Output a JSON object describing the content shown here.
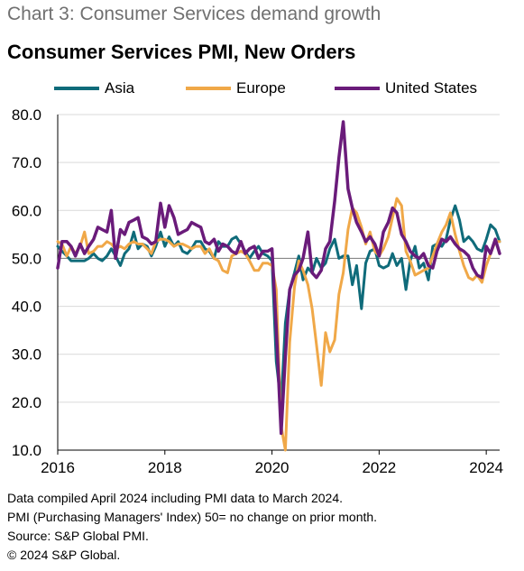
{
  "chart_number": "Chart 3: Consumer Services demand growth",
  "chart_data": {
    "type": "line",
    "title": "Consumer Services PMI, New Orders",
    "xlabel": "",
    "ylabel": "",
    "ylim": [
      10,
      80
    ],
    "xlim": [
      2016,
      2024.25
    ],
    "yticks": [
      "10.0",
      "20.0",
      "30.0",
      "40.0",
      "50.0",
      "60.0",
      "70.0",
      "80.0"
    ],
    "xticks": [
      "2016",
      "2018",
      "2020",
      "2022",
      "2024"
    ],
    "reference_line": 50,
    "grid": true,
    "legend_position": "top",
    "series": [
      {
        "name": "Asia",
        "color": "#0f6b7a",
        "points": [
          [
            2016.0,
            52.5
          ],
          [
            2016.08,
            51.5
          ],
          [
            2016.17,
            50.5
          ],
          [
            2016.25,
            49.5
          ],
          [
            2016.33,
            49.5
          ],
          [
            2016.42,
            49.5
          ],
          [
            2016.5,
            49.5
          ],
          [
            2016.58,
            50.0
          ],
          [
            2016.67,
            51.0
          ],
          [
            2016.75,
            50.0
          ],
          [
            2016.83,
            49.5
          ],
          [
            2016.92,
            50.5
          ],
          [
            2017.0,
            52.0
          ],
          [
            2017.08,
            50.5
          ],
          [
            2017.17,
            48.5
          ],
          [
            2017.25,
            51.0
          ],
          [
            2017.33,
            52.0
          ],
          [
            2017.42,
            55.5
          ],
          [
            2017.5,
            52.0
          ],
          [
            2017.58,
            53.0
          ],
          [
            2017.67,
            52.5
          ],
          [
            2017.75,
            50.5
          ],
          [
            2017.83,
            52.5
          ],
          [
            2017.92,
            55.5
          ],
          [
            2018.0,
            52.5
          ],
          [
            2018.08,
            54.5
          ],
          [
            2018.17,
            52.5
          ],
          [
            2018.25,
            53.5
          ],
          [
            2018.33,
            51.5
          ],
          [
            2018.42,
            51.0
          ],
          [
            2018.5,
            52.0
          ],
          [
            2018.58,
            53.5
          ],
          [
            2018.67,
            53.5
          ],
          [
            2018.75,
            52.0
          ],
          [
            2018.83,
            51.5
          ],
          [
            2018.92,
            50.0
          ],
          [
            2019.0,
            53.5
          ],
          [
            2019.08,
            52.5
          ],
          [
            2019.17,
            52.5
          ],
          [
            2019.25,
            54.0
          ],
          [
            2019.33,
            54.5
          ],
          [
            2019.42,
            53.0
          ],
          [
            2019.5,
            51.5
          ],
          [
            2019.58,
            50.0
          ],
          [
            2019.67,
            51.5
          ],
          [
            2019.75,
            52.5
          ],
          [
            2019.83,
            51.0
          ],
          [
            2019.92,
            50.5
          ],
          [
            2020.0,
            49.5
          ],
          [
            2020.08,
            28.5
          ],
          [
            2020.17,
            19.5
          ],
          [
            2020.25,
            36.5
          ],
          [
            2020.33,
            43.5
          ],
          [
            2020.42,
            47.0
          ],
          [
            2020.5,
            50.5
          ],
          [
            2020.58,
            45.5
          ],
          [
            2020.67,
            48.0
          ],
          [
            2020.75,
            47.0
          ],
          [
            2020.83,
            50.0
          ],
          [
            2020.92,
            48.0
          ],
          [
            2021.0,
            49.0
          ],
          [
            2021.08,
            52.0
          ],
          [
            2021.17,
            54.0
          ],
          [
            2021.25,
            50.0
          ],
          [
            2021.33,
            50.5
          ],
          [
            2021.42,
            50.5
          ],
          [
            2021.5,
            44.5
          ],
          [
            2021.58,
            48.5
          ],
          [
            2021.67,
            39.5
          ],
          [
            2021.75,
            49.0
          ],
          [
            2021.83,
            51.5
          ],
          [
            2021.92,
            52.0
          ],
          [
            2022.0,
            48.5
          ],
          [
            2022.08,
            48.0
          ],
          [
            2022.17,
            48.5
          ],
          [
            2022.25,
            51.0
          ],
          [
            2022.33,
            48.5
          ],
          [
            2022.42,
            50.0
          ],
          [
            2022.5,
            43.5
          ],
          [
            2022.58,
            49.5
          ],
          [
            2022.67,
            52.5
          ],
          [
            2022.75,
            48.0
          ],
          [
            2022.83,
            49.0
          ],
          [
            2022.92,
            45.5
          ],
          [
            2023.0,
            52.5
          ],
          [
            2023.08,
            53.0
          ],
          [
            2023.17,
            52.5
          ],
          [
            2023.25,
            54.0
          ],
          [
            2023.33,
            58.0
          ],
          [
            2023.42,
            61.0
          ],
          [
            2023.5,
            58.0
          ],
          [
            2023.58,
            53.5
          ],
          [
            2023.67,
            54.5
          ],
          [
            2023.75,
            53.5
          ],
          [
            2023.83,
            52.0
          ],
          [
            2023.92,
            51.5
          ],
          [
            2024.0,
            54.0
          ],
          [
            2024.08,
            57.0
          ],
          [
            2024.17,
            56.0
          ],
          [
            2024.25,
            53.5
          ]
        ]
      },
      {
        "name": "Europe",
        "color": "#f0a848",
        "points": [
          [
            2016.0,
            53.5
          ],
          [
            2016.08,
            53.0
          ],
          [
            2016.17,
            50.5
          ],
          [
            2016.25,
            52.5
          ],
          [
            2016.33,
            51.0
          ],
          [
            2016.42,
            52.5
          ],
          [
            2016.5,
            55.5
          ],
          [
            2016.58,
            51.0
          ],
          [
            2016.67,
            51.5
          ],
          [
            2016.75,
            52.5
          ],
          [
            2016.83,
            52.5
          ],
          [
            2016.92,
            53.5
          ],
          [
            2017.0,
            53.0
          ],
          [
            2017.08,
            52.0
          ],
          [
            2017.17,
            52.5
          ],
          [
            2017.25,
            52.0
          ],
          [
            2017.33,
            53.0
          ],
          [
            2017.42,
            53.5
          ],
          [
            2017.5,
            53.0
          ],
          [
            2017.58,
            53.0
          ],
          [
            2017.67,
            52.0
          ],
          [
            2017.75,
            51.0
          ],
          [
            2017.83,
            53.5
          ],
          [
            2017.92,
            54.0
          ],
          [
            2018.0,
            54.0
          ],
          [
            2018.08,
            53.5
          ],
          [
            2018.17,
            52.5
          ],
          [
            2018.25,
            53.0
          ],
          [
            2018.33,
            53.0
          ],
          [
            2018.42,
            52.5
          ],
          [
            2018.5,
            52.0
          ],
          [
            2018.58,
            52.5
          ],
          [
            2018.67,
            52.5
          ],
          [
            2018.75,
            51.0
          ],
          [
            2018.83,
            52.0
          ],
          [
            2018.92,
            50.0
          ],
          [
            2019.0,
            49.5
          ],
          [
            2019.08,
            47.5
          ],
          [
            2019.17,
            47.0
          ],
          [
            2019.25,
            50.5
          ],
          [
            2019.33,
            51.0
          ],
          [
            2019.42,
            51.5
          ],
          [
            2019.5,
            51.0
          ],
          [
            2019.58,
            49.5
          ],
          [
            2019.67,
            47.5
          ],
          [
            2019.75,
            47.5
          ],
          [
            2019.83,
            49.0
          ],
          [
            2019.92,
            49.0
          ],
          [
            2020.0,
            48.5
          ],
          [
            2020.08,
            43.5
          ],
          [
            2020.17,
            15.0
          ],
          [
            2020.25,
            10.0
          ],
          [
            2020.33,
            32.5
          ],
          [
            2020.42,
            44.0
          ],
          [
            2020.5,
            49.5
          ],
          [
            2020.58,
            47.5
          ],
          [
            2020.67,
            44.5
          ],
          [
            2020.75,
            39.5
          ],
          [
            2020.83,
            32.0
          ],
          [
            2020.92,
            23.5
          ],
          [
            2021.0,
            34.5
          ],
          [
            2021.08,
            30.5
          ],
          [
            2021.17,
            33.0
          ],
          [
            2021.25,
            42.5
          ],
          [
            2021.33,
            47.0
          ],
          [
            2021.42,
            56.0
          ],
          [
            2021.5,
            60.5
          ],
          [
            2021.58,
            59.5
          ],
          [
            2021.67,
            56.5
          ],
          [
            2021.75,
            53.0
          ],
          [
            2021.83,
            55.5
          ],
          [
            2021.92,
            51.5
          ],
          [
            2022.0,
            50.5
          ],
          [
            2022.08,
            52.0
          ],
          [
            2022.17,
            54.5
          ],
          [
            2022.25,
            58.5
          ],
          [
            2022.33,
            62.5
          ],
          [
            2022.42,
            61.0
          ],
          [
            2022.5,
            51.5
          ],
          [
            2022.58,
            49.5
          ],
          [
            2022.67,
            46.5
          ],
          [
            2022.75,
            47.0
          ],
          [
            2022.83,
            47.5
          ],
          [
            2022.92,
            48.0
          ],
          [
            2023.0,
            50.5
          ],
          [
            2023.08,
            53.0
          ],
          [
            2023.17,
            55.5
          ],
          [
            2023.25,
            57.0
          ],
          [
            2023.33,
            59.5
          ],
          [
            2023.42,
            55.0
          ],
          [
            2023.5,
            51.5
          ],
          [
            2023.58,
            48.5
          ],
          [
            2023.67,
            46.0
          ],
          [
            2023.75,
            45.5
          ],
          [
            2023.83,
            46.5
          ],
          [
            2023.92,
            45.0
          ],
          [
            2024.0,
            48.5
          ],
          [
            2024.08,
            51.0
          ],
          [
            2024.17,
            53.5
          ],
          [
            2024.25,
            53.5
          ]
        ]
      },
      {
        "name": "United States",
        "color": "#6a1b7a",
        "points": [
          [
            2016.0,
            48.0
          ],
          [
            2016.08,
            53.5
          ],
          [
            2016.17,
            53.5
          ],
          [
            2016.25,
            52.5
          ],
          [
            2016.33,
            50.5
          ],
          [
            2016.42,
            53.0
          ],
          [
            2016.5,
            51.0
          ],
          [
            2016.58,
            52.5
          ],
          [
            2016.67,
            54.0
          ],
          [
            2016.75,
            56.5
          ],
          [
            2016.83,
            56.0
          ],
          [
            2016.92,
            55.5
          ],
          [
            2017.0,
            60.0
          ],
          [
            2017.08,
            50.0
          ],
          [
            2017.17,
            56.0
          ],
          [
            2017.25,
            55.0
          ],
          [
            2017.33,
            57.5
          ],
          [
            2017.42,
            58.0
          ],
          [
            2017.5,
            58.5
          ],
          [
            2017.58,
            54.5
          ],
          [
            2017.67,
            54.0
          ],
          [
            2017.75,
            53.0
          ],
          [
            2017.83,
            53.5
          ],
          [
            2017.92,
            61.5
          ],
          [
            2018.0,
            56.5
          ],
          [
            2018.08,
            61.0
          ],
          [
            2018.17,
            58.5
          ],
          [
            2018.25,
            55.0
          ],
          [
            2018.33,
            55.5
          ],
          [
            2018.42,
            56.0
          ],
          [
            2018.5,
            57.5
          ],
          [
            2018.58,
            57.0
          ],
          [
            2018.67,
            56.5
          ],
          [
            2018.75,
            53.5
          ],
          [
            2018.83,
            53.0
          ],
          [
            2018.92,
            54.0
          ],
          [
            2019.0,
            51.5
          ],
          [
            2019.08,
            53.0
          ],
          [
            2019.17,
            52.5
          ],
          [
            2019.25,
            51.5
          ],
          [
            2019.33,
            51.0
          ],
          [
            2019.42,
            53.5
          ],
          [
            2019.5,
            51.0
          ],
          [
            2019.58,
            52.0
          ],
          [
            2019.67,
            52.5
          ],
          [
            2019.75,
            50.0
          ],
          [
            2019.83,
            51.5
          ],
          [
            2019.92,
            51.5
          ],
          [
            2020.0,
            52.0
          ],
          [
            2020.08,
            35.5
          ],
          [
            2020.17,
            13.5
          ],
          [
            2020.25,
            29.5
          ],
          [
            2020.33,
            43.5
          ],
          [
            2020.42,
            46.5
          ],
          [
            2020.5,
            47.5
          ],
          [
            2020.58,
            50.0
          ],
          [
            2020.67,
            55.5
          ],
          [
            2020.75,
            47.0
          ],
          [
            2020.83,
            46.0
          ],
          [
            2020.92,
            47.5
          ],
          [
            2021.0,
            52.0
          ],
          [
            2021.08,
            53.5
          ],
          [
            2021.17,
            62.0
          ],
          [
            2021.25,
            71.0
          ],
          [
            2021.33,
            78.5
          ],
          [
            2021.42,
            64.5
          ],
          [
            2021.5,
            60.5
          ],
          [
            2021.58,
            57.5
          ],
          [
            2021.67,
            55.5
          ],
          [
            2021.75,
            53.5
          ],
          [
            2021.83,
            54.5
          ],
          [
            2021.92,
            53.0
          ],
          [
            2022.0,
            50.5
          ],
          [
            2022.08,
            55.5
          ],
          [
            2022.17,
            57.5
          ],
          [
            2022.25,
            60.5
          ],
          [
            2022.33,
            59.5
          ],
          [
            2022.42,
            55.0
          ],
          [
            2022.5,
            53.5
          ],
          [
            2022.58,
            51.5
          ],
          [
            2022.67,
            50.5
          ],
          [
            2022.75,
            50.0
          ],
          [
            2022.83,
            51.0
          ],
          [
            2022.92,
            48.5
          ],
          [
            2023.0,
            48.0
          ],
          [
            2023.08,
            51.5
          ],
          [
            2023.17,
            54.0
          ],
          [
            2023.25,
            53.5
          ],
          [
            2023.33,
            54.5
          ],
          [
            2023.42,
            53.0
          ],
          [
            2023.5,
            52.0
          ],
          [
            2023.58,
            51.5
          ],
          [
            2023.67,
            50.5
          ],
          [
            2023.75,
            48.0
          ],
          [
            2023.83,
            46.5
          ],
          [
            2023.92,
            46.0
          ],
          [
            2024.0,
            52.5
          ],
          [
            2024.08,
            51.0
          ],
          [
            2024.17,
            54.0
          ],
          [
            2024.25,
            51.0
          ]
        ]
      }
    ]
  },
  "notes": [
    "Data compiled April 2024 including PMI data to March 2024.",
    "PMI (Purchasing Managers' Index) 50= no change on prior month.",
    "Source: S&P Global PMI.",
    "© 2024 S&P Global."
  ]
}
